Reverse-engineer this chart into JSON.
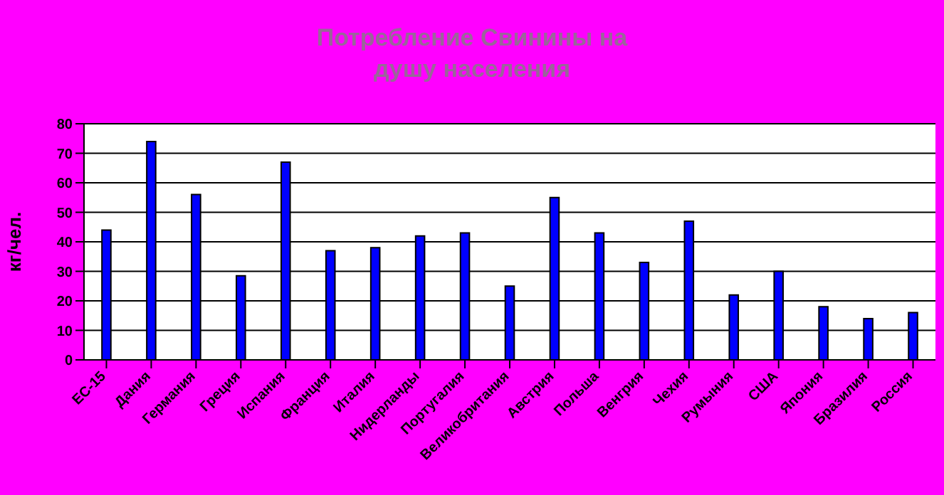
{
  "chart_data": {
    "type": "bar",
    "title": "Потребление Свинины на душу населения",
    "ylabel": "кг/чел.",
    "categories": [
      "ЕС-15",
      "Дания",
      "Германия",
      "Греция",
      "Испания",
      "Франция",
      "Италия",
      "Нидерланды",
      "Португалия",
      "Великобритания",
      "Австрия",
      "Польша",
      "Венгрия",
      "Чехия",
      "Румыния",
      "США",
      "Япония",
      "Бразилия",
      "Россия"
    ],
    "values": [
      44,
      74,
      56,
      28.5,
      67,
      37,
      38,
      42,
      43,
      25,
      55,
      43,
      33,
      47,
      22,
      30,
      18,
      14,
      16
    ],
    "color": "#0000ff",
    "ylim": [
      0,
      80
    ],
    "yticks": [
      0,
      10,
      20,
      30,
      40,
      50,
      60,
      70,
      80
    ],
    "grid": "y",
    "legend": false
  }
}
